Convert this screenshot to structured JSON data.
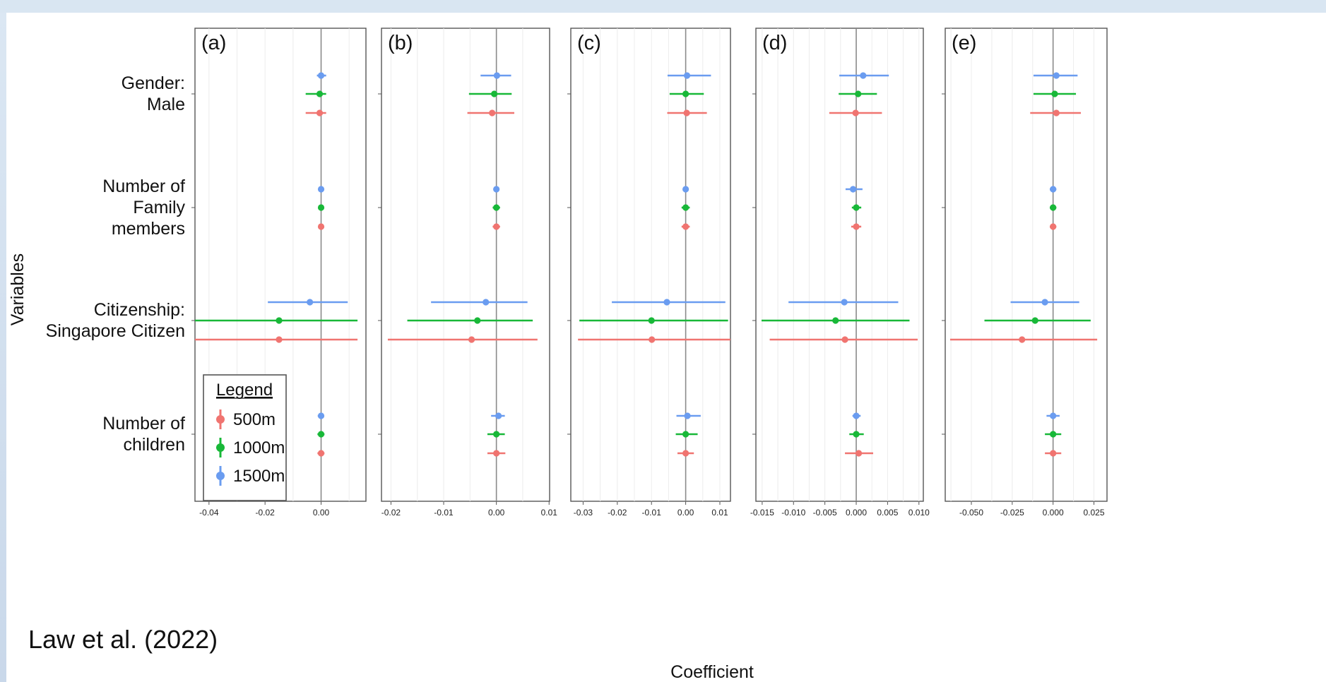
{
  "credit": "Law et al. (2022)",
  "chart_data": {
    "type": "scatter",
    "variant": "coefficient-plot-with-error-bars",
    "y_axis_title": "Variables",
    "x_axis_title": "Coefficient",
    "variables": [
      {
        "lines": [
          "Gender:",
          "Male"
        ]
      },
      {
        "lines": [
          "Number of",
          "Family",
          "members"
        ]
      },
      {
        "lines": [
          "Citizenship:",
          "Singapore Citizen"
        ]
      },
      {
        "lines": [
          "Number of",
          "children"
        ]
      }
    ],
    "legend": {
      "title": "Legend",
      "position": "bottom-left",
      "items": [
        {
          "label": "500m",
          "color": "#f07470"
        },
        {
          "label": "1000m",
          "color": "#18b838"
        },
        {
          "label": "1500m",
          "color": "#6a9cf0"
        }
      ]
    },
    "grid": true,
    "panels": [
      {
        "label": "(a)",
        "xlim": [
          -0.045,
          0.016
        ],
        "ticks": [
          -0.04,
          -0.02,
          0.0
        ],
        "tick_labels": [
          "-0.04",
          "-0.02",
          "0.00"
        ],
        "series": [
          {
            "name": "1500m",
            "points": [
              [
                0.0,
                -0.0015,
                0.0018
              ],
              [
                0.0,
                -0.0003,
                0.0003
              ],
              [
                -0.004,
                -0.019,
                0.0095
              ],
              [
                0.0,
                -0.0012,
                0.0011
              ]
            ]
          },
          {
            "name": "1000m",
            "points": [
              [
                -0.0005,
                -0.0055,
                0.0018
              ],
              [
                0.0,
                -0.0004,
                0.0004
              ],
              [
                -0.015,
                -0.045,
                0.013
              ],
              [
                0.0,
                -0.0013,
                0.0012
              ]
            ]
          },
          {
            "name": "500m",
            "points": [
              [
                -0.0005,
                -0.0055,
                0.0018
              ],
              [
                0.0,
                -0.0004,
                0.0004
              ],
              [
                -0.015,
                -0.045,
                0.013
              ],
              [
                0.0,
                -0.0013,
                0.0012
              ]
            ]
          }
        ]
      },
      {
        "label": "(b)",
        "xlim": [
          -0.0218,
          0.0101
        ],
        "ticks": [
          -0.02,
          -0.01,
          0.0,
          0.01
        ],
        "tick_labels": [
          "-0.02",
          "-0.01",
          "0.00",
          "0.01"
        ],
        "series": [
          {
            "name": "1500m",
            "points": [
              [
                0.0001,
                -0.003,
                0.0028
              ],
              [
                0.0,
                -0.0005,
                0.0004
              ],
              [
                -0.002,
                -0.0124,
                0.0059
              ],
              [
                0.0004,
                -0.001,
                0.0016
              ]
            ]
          },
          {
            "name": "1000m",
            "points": [
              [
                -0.0004,
                -0.0052,
                0.0029
              ],
              [
                0.0,
                -0.0007,
                0.0007
              ],
              [
                -0.0036,
                -0.0169,
                0.0069
              ],
              [
                0.0,
                -0.0017,
                0.0016
              ]
            ]
          },
          {
            "name": "500m",
            "points": [
              [
                -0.0008,
                -0.0055,
                0.0034
              ],
              [
                0.0,
                -0.0007,
                0.0007
              ],
              [
                -0.0047,
                -0.0206,
                0.0078
              ],
              [
                0.0,
                -0.0017,
                0.0017
              ]
            ]
          }
        ]
      },
      {
        "label": "(c)",
        "xlim": [
          -0.0336,
          0.0131
        ],
        "ticks": [
          -0.03,
          -0.02,
          -0.01,
          0.0,
          0.01
        ],
        "tick_labels": [
          "-0.03",
          "-0.02",
          "-0.01",
          "0.00",
          "0.01"
        ],
        "series": [
          {
            "name": "1500m",
            "points": [
              [
                0.0004,
                -0.0053,
                0.0074
              ],
              [
                0.0,
                -0.0006,
                0.0006
              ],
              [
                -0.0055,
                -0.0216,
                0.0116
              ],
              [
                0.0005,
                -0.0027,
                0.0044
              ]
            ]
          },
          {
            "name": "1000m",
            "points": [
              [
                0.0,
                -0.0047,
                0.0053
              ],
              [
                0.0,
                -0.0012,
                0.0012
              ],
              [
                -0.01,
                -0.0311,
                0.0124
              ],
              [
                0.0,
                -0.0029,
                0.0035
              ]
            ]
          },
          {
            "name": "500m",
            "points": [
              [
                0.0003,
                -0.0054,
                0.0062
              ],
              [
                0.0,
                -0.0012,
                0.0012
              ],
              [
                -0.0099,
                -0.0315,
                0.0138
              ],
              [
                0.0,
                -0.0024,
                0.0024
              ]
            ]
          }
        ]
      },
      {
        "label": "(d)",
        "xlim": [
          -0.016,
          0.0107
        ],
        "ticks": [
          -0.015,
          -0.01,
          -0.005,
          0.0,
          0.005,
          0.01
        ],
        "tick_labels": [
          "-0.015",
          "-0.010",
          "-0.005",
          "0.000",
          "0.005",
          "0.010"
        ],
        "series": [
          {
            "name": "1500m",
            "points": [
              [
                0.0011,
                -0.0027,
                0.0052
              ],
              [
                -0.0005,
                -0.0017,
                0.001
              ],
              [
                -0.0019,
                -0.0108,
                0.0067
              ],
              [
                0.0,
                -0.0006,
                0.0007
              ]
            ]
          },
          {
            "name": "1000m",
            "points": [
              [
                0.0003,
                -0.0028,
                0.0033
              ],
              [
                0.0,
                -0.0007,
                0.0008
              ],
              [
                -0.0033,
                -0.0151,
                0.0085
              ],
              [
                0.0,
                -0.0011,
                0.0012
              ]
            ]
          },
          {
            "name": "500m",
            "points": [
              [
                -0.0001,
                -0.0043,
                0.0041
              ],
              [
                0.0,
                -0.0008,
                0.0008
              ],
              [
                -0.0018,
                -0.0138,
                0.0098
              ],
              [
                0.0004,
                -0.0018,
                0.0027
              ]
            ]
          }
        ]
      },
      {
        "label": "(e)",
        "xlim": [
          -0.066,
          0.033
        ],
        "ticks": [
          -0.05,
          -0.025,
          0.0,
          0.025
        ],
        "tick_labels": [
          "-0.050",
          "-0.025",
          "0.000",
          "0.025"
        ],
        "series": [
          {
            "name": "1500m",
            "points": [
              [
                0.002,
                -0.012,
                0.015
              ],
              [
                0.0,
                -0.002,
                0.002
              ],
              [
                -0.005,
                -0.026,
                0.016
              ],
              [
                0.0,
                -0.004,
                0.004
              ]
            ]
          },
          {
            "name": "1000m",
            "points": [
              [
                0.001,
                -0.012,
                0.014
              ],
              [
                0.0,
                -0.002,
                0.002
              ],
              [
                -0.011,
                -0.042,
                0.023
              ],
              [
                0.0,
                -0.005,
                0.005
              ]
            ]
          },
          {
            "name": "500m",
            "points": [
              [
                0.002,
                -0.014,
                0.017
              ],
              [
                0.0,
                -0.002,
                0.002
              ],
              [
                -0.019,
                -0.063,
                0.027
              ],
              [
                0.0,
                -0.005,
                0.005
              ]
            ]
          }
        ]
      }
    ]
  }
}
